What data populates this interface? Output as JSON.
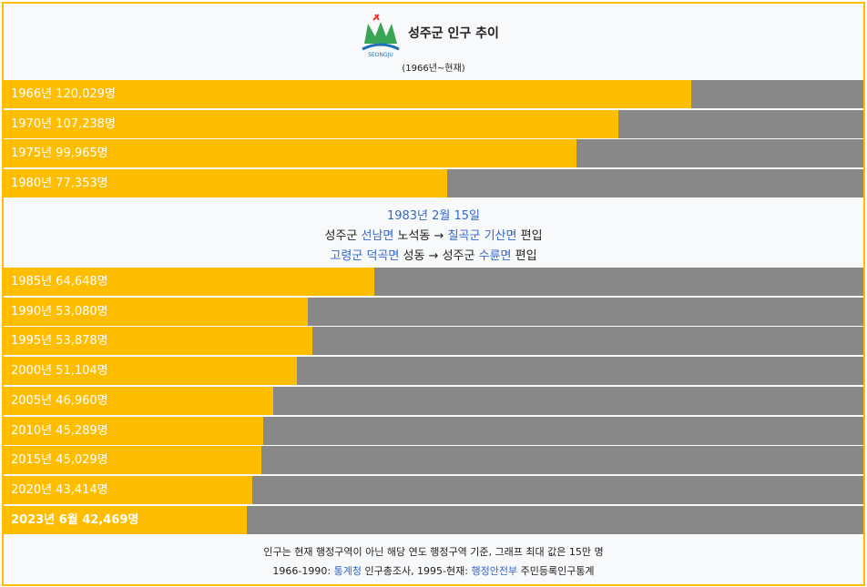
{
  "header": {
    "title": "성주군 인구 추이",
    "subtitle": "(1966년~현재)",
    "logo_text": "SEONGJU"
  },
  "colors": {
    "bar": "#ffbd00",
    "track": "#888888",
    "link": "#3366cc",
    "border": "#ffbd00"
  },
  "chart_data": {
    "type": "bar",
    "orientation": "horizontal",
    "max": 150000,
    "unit": "명",
    "categories": [
      "1966",
      "1970",
      "1975",
      "1980",
      "1985",
      "1990",
      "1995",
      "2000",
      "2005",
      "2010",
      "2015",
      "2020",
      "2023년 6월"
    ],
    "values": [
      120029,
      107238,
      99965,
      77353,
      64648,
      53080,
      53878,
      51104,
      46960,
      45289,
      45029,
      43414,
      42469
    ]
  },
  "rows_top": [
    {
      "label": "1966년 120,029명",
      "value": 120029
    },
    {
      "label": "1970년 107,238명",
      "value": 107238
    },
    {
      "label": "1975년 99,965명",
      "value": 99965
    },
    {
      "label": "1980년 77,353명",
      "value": 77353
    }
  ],
  "rows_bottom": [
    {
      "label": "1985년 64,648명",
      "value": 64648
    },
    {
      "label": "1990년 53,080명",
      "value": 53080
    },
    {
      "label": "1995년 53,878명",
      "value": 53878
    },
    {
      "label": "2000년 51,104명",
      "value": 51104
    },
    {
      "label": "2005년 46,960명",
      "value": 46960
    },
    {
      "label": "2010년 45,289명",
      "value": 45289
    },
    {
      "label": "2015년 45,029명",
      "value": 45029
    },
    {
      "label": "2020년 43,414명",
      "value": 43414
    },
    {
      "label": "2023년 6월 42,469명",
      "value": 42469,
      "bold": true
    }
  ],
  "note": {
    "date": "1983년 2월 15일",
    "line2": {
      "a": "성주군",
      "b": "선남면",
      "c": "노석동 →",
      "d": "칠곡군",
      "e": "기산면",
      "f": "편입"
    },
    "line3": {
      "a": "고령군",
      "b": "덕곡면",
      "c": "성동 →",
      "d": "성주군",
      "e": "수륜면",
      "f": "편입"
    }
  },
  "footer": {
    "line1": "인구는 현재 행정구역이 아닌 해당 연도 행정구역 기준, 그래프 최대 값은 15만 명",
    "line2_a": "1966-1990:",
    "line2_link1": "통계청",
    "line2_b": "인구총조사, 1995-현재:",
    "line2_link2": "행정안전부",
    "line2_c": "주민등록인구통계"
  }
}
